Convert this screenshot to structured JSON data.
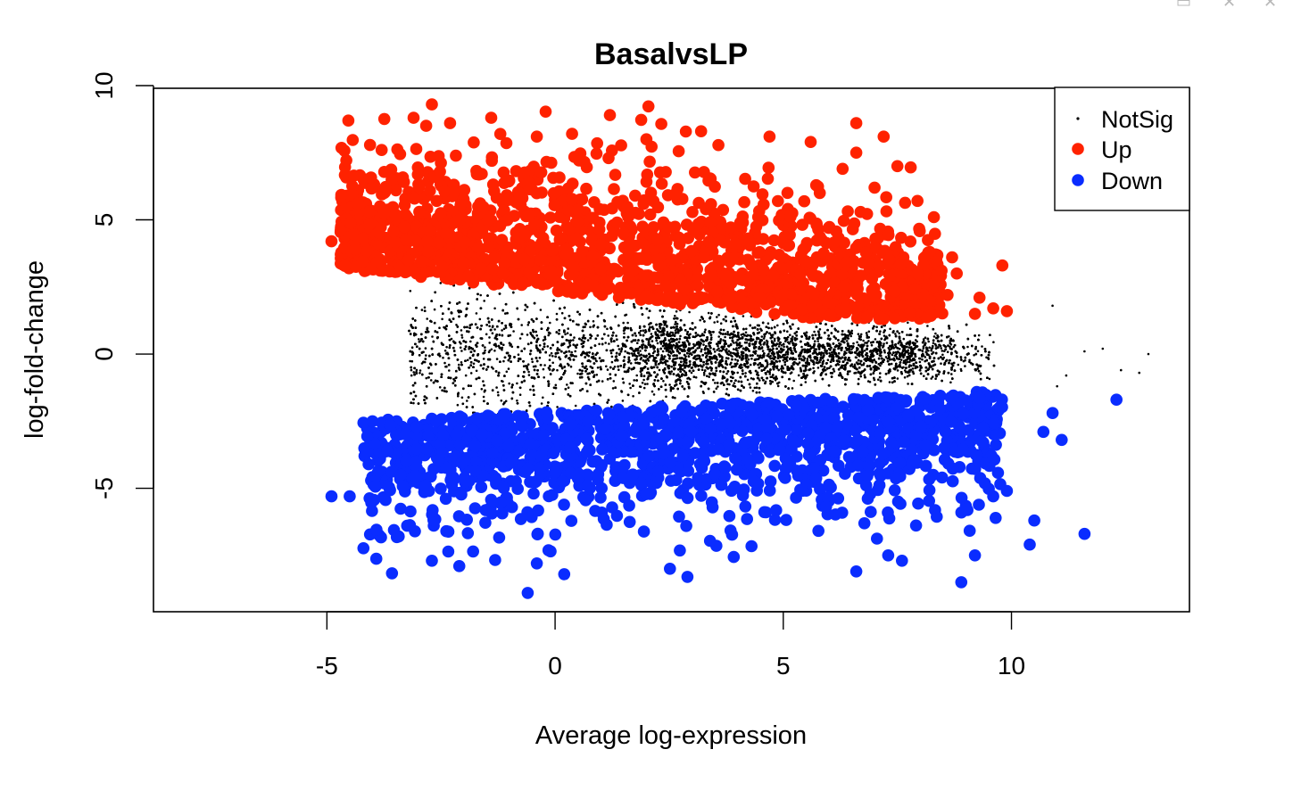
{
  "window": {
    "controls": [
      "restore-icon",
      "close-icon",
      "close-icon"
    ],
    "control_color": "#b8b8b8"
  },
  "chart_data": {
    "type": "scatter",
    "title": "BasalvsLP",
    "xlabel": "Average log-expression",
    "ylabel": "log-fold-change",
    "xlim": [
      -8.8,
      13.9
    ],
    "ylim": [
      -9.6,
      9.9
    ],
    "x_ticks": [
      -5,
      0,
      5,
      10
    ],
    "x_tick_labels": [
      "-5",
      "0",
      "5",
      "10"
    ],
    "y_ticks": [
      -5,
      0,
      5,
      10
    ],
    "y_tick_labels": [
      "-5",
      "0",
      "5",
      "10"
    ],
    "grid": false,
    "legend": {
      "placement": "top-right",
      "entries": [
        {
          "label": "NotSig",
          "color": "#000000",
          "marker": "small-dot"
        },
        {
          "label": "Up",
          "color": "#ff2200",
          "marker": "large-dot"
        },
        {
          "label": "Down",
          "color": "#0a2cff",
          "marker": "large-dot"
        }
      ]
    },
    "series": [
      {
        "name": "NotSig",
        "color": "#000000",
        "approx_points": 9000,
        "x_range": [
          -4.6,
          13.0
        ],
        "y_range": [
          -3.0,
          3.0
        ],
        "outliers": [
          [
            12.0,
            0.2
          ],
          [
            12.4,
            -0.6
          ],
          [
            12.8,
            -0.7
          ],
          [
            13.0,
            0.0
          ],
          [
            11.6,
            0.1
          ],
          [
            11.2,
            -0.8
          ],
          [
            10.9,
            1.8
          ],
          [
            11.0,
            -1.2
          ]
        ]
      },
      {
        "name": "Up",
        "color": "#ff2200",
        "approx_points": 1700,
        "x_range": [
          -4.9,
          9.9
        ],
        "y_range": [
          1.3,
          9.3
        ],
        "points": [
          [
            -2.7,
            9.3
          ],
          [
            -3.1,
            8.8
          ],
          [
            1.2,
            8.9
          ],
          [
            -1.4,
            8.8
          ],
          [
            -2.3,
            8.6
          ],
          [
            6.6,
            8.6
          ],
          [
            3.2,
            8.3
          ],
          [
            7.2,
            8.1
          ],
          [
            -1.2,
            8.2
          ],
          [
            -0.4,
            8.1
          ],
          [
            2.0,
            8.0
          ],
          [
            5.6,
            7.9
          ],
          [
            -3.8,
            7.6
          ],
          [
            6.6,
            7.5
          ],
          [
            7.5,
            7.0
          ],
          [
            8.3,
            5.1
          ],
          [
            9.8,
            3.3
          ],
          [
            9.9,
            1.6
          ],
          [
            9.2,
            1.5
          ],
          [
            9.6,
            1.7
          ],
          [
            9.3,
            2.1
          ],
          [
            8.8,
            3.0
          ],
          [
            8.7,
            3.6
          ],
          [
            8.6,
            2.2
          ],
          [
            -4.9,
            4.2
          ],
          [
            7.0,
            6.2
          ],
          [
            5.8,
            6.0
          ],
          [
            6.3,
            6.9
          ]
        ]
      },
      {
        "name": "Down",
        "color": "#0a2cff",
        "approx_points": 1500,
        "x_range": [
          -4.9,
          12.3
        ],
        "y_range": [
          -8.9,
          -1.3
        ],
        "points": [
          [
            -0.6,
            -8.9
          ],
          [
            8.9,
            -8.5
          ],
          [
            0.2,
            -8.2
          ],
          [
            2.9,
            -8.3
          ],
          [
            12.3,
            -1.7
          ],
          [
            11.6,
            -6.7
          ],
          [
            10.4,
            -7.1
          ],
          [
            10.5,
            -6.2
          ],
          [
            11.1,
            -3.2
          ],
          [
            10.9,
            -2.2
          ],
          [
            9.9,
            -5.1
          ],
          [
            9.2,
            -7.5
          ],
          [
            -4.9,
            -5.3
          ],
          [
            -4.5,
            -5.3
          ],
          [
            -2.7,
            -7.7
          ],
          [
            -2.1,
            -7.9
          ],
          [
            6.6,
            -8.1
          ],
          [
            7.6,
            -7.7
          ],
          [
            10.7,
            -2.9
          ],
          [
            9.6,
            -5.3
          ],
          [
            7.3,
            -7.5
          ],
          [
            -0.4,
            -7.8
          ]
        ]
      }
    ]
  }
}
